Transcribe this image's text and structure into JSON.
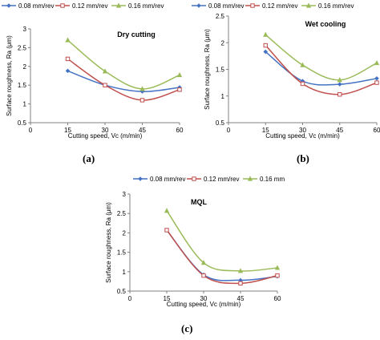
{
  "figure": {
    "panel_labels": [
      "(a)",
      "(b)",
      "(c)"
    ]
  },
  "chart_data": [
    {
      "type": "line",
      "title": "Dry cutting",
      "xlabel": "Cutting speed, Vc (m/min)",
      "ylabel": "Surface roughness, Ra (μm)",
      "x": [
        15,
        30,
        45,
        60
      ],
      "xticks": [
        "0",
        "15",
        "30",
        "45",
        "60"
      ],
      "yticks": [
        "0.5",
        "1",
        "1.5",
        "2",
        "2.5",
        "3"
      ],
      "xlim": [
        0,
        60
      ],
      "ylim": [
        0.5,
        3
      ],
      "grid": false,
      "legend_position": "top",
      "series": [
        {
          "name": "0.08 mm/rev",
          "values": [
            1.88,
            1.5,
            1.33,
            1.44
          ],
          "color": "#4472c4",
          "marker": "diamond"
        },
        {
          "name": "0.12 mm/rev",
          "values": [
            2.2,
            1.5,
            1.1,
            1.38
          ],
          "color": "#c0504d",
          "marker": "square"
        },
        {
          "name": "0.16 mm/rev",
          "values": [
            2.7,
            1.87,
            1.4,
            1.77
          ],
          "color": "#9bbb59",
          "marker": "triangle"
        }
      ]
    },
    {
      "type": "line",
      "title": "Wet cooling",
      "xlabel": "Cutting speed, Vc (m/min)",
      "ylabel": "Surface roughness, Ra (μm)",
      "x": [
        15,
        30,
        45,
        60
      ],
      "xticks": [
        "0",
        "15",
        "30",
        "45",
        "60"
      ],
      "yticks": [
        "0.5",
        "1",
        "1.5",
        "2",
        "2.5"
      ],
      "xlim": [
        0,
        60
      ],
      "ylim": [
        0.5,
        2.5
      ],
      "grid": false,
      "legend_position": "top",
      "series": [
        {
          "name": "0.08 mm/rev",
          "values": [
            1.83,
            1.28,
            1.22,
            1.33
          ],
          "color": "#4472c4",
          "marker": "diamond"
        },
        {
          "name": "0.12 mm/rev",
          "values": [
            1.95,
            1.23,
            1.03,
            1.25
          ],
          "color": "#c0504d",
          "marker": "square"
        },
        {
          "name": "0.16 mm/rev",
          "values": [
            2.15,
            1.58,
            1.3,
            1.62
          ],
          "color": "#9bbb59",
          "marker": "triangle"
        }
      ]
    },
    {
      "type": "line",
      "title": "MQL",
      "xlabel": "Cutting speed, Vc (m/min)",
      "ylabel": "Surface roughness, Ra (μm)",
      "x": [
        15,
        30,
        45,
        60
      ],
      "xticks": [
        "0",
        "15",
        "30",
        "45",
        "60"
      ],
      "yticks": [
        "0.5",
        "1",
        "1.5",
        "2",
        "2.5",
        "3"
      ],
      "xlim": [
        0,
        60
      ],
      "ylim": [
        0.5,
        3
      ],
      "grid": false,
      "legend_position": "top",
      "series": [
        {
          "name": "0.08 mm/rev",
          "values": [
            2.07,
            0.92,
            0.78,
            0.88
          ],
          "color": "#4472c4",
          "marker": "diamond"
        },
        {
          "name": "0.12 mm/rev",
          "values": [
            2.07,
            0.9,
            0.7,
            0.9
          ],
          "color": "#c0504d",
          "marker": "square"
        },
        {
          "name": "0.16 mm/rev",
          "values": [
            2.57,
            1.23,
            1.02,
            1.1
          ],
          "color": "#9bbb59",
          "marker": "triangle"
        }
      ]
    }
  ]
}
